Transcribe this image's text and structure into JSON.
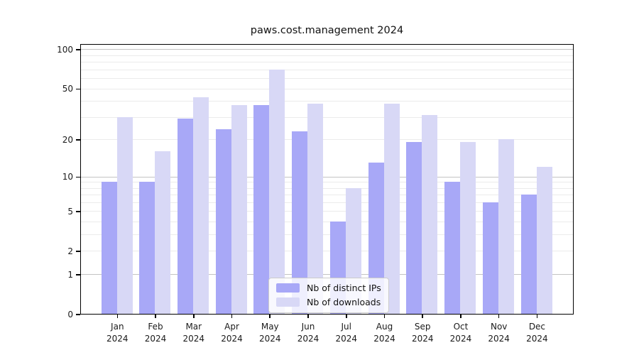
{
  "title": "paws.cost.management 2024",
  "chart_data": {
    "type": "bar",
    "title": "paws.cost.management 2024",
    "categories": [
      "Jan",
      "Feb",
      "Mar",
      "Apr",
      "May",
      "Jun",
      "Jul",
      "Aug",
      "Sep",
      "Oct",
      "Nov",
      "Dec"
    ],
    "year_label": "2024",
    "series": [
      {
        "name": "Nb of distinct IPs",
        "color": "#a8a8f7",
        "values": [
          9,
          9,
          29,
          24,
          37,
          23,
          4,
          13,
          19,
          9,
          6,
          7
        ]
      },
      {
        "name": "Nb of downloads",
        "color": "#d8d8f6",
        "values": [
          30,
          16,
          43,
          37,
          70,
          38,
          8,
          38,
          31,
          19,
          20,
          12
        ]
      }
    ],
    "yticks": [
      0,
      1,
      2,
      5,
      10,
      20,
      50,
      100
    ],
    "minor_gridlines": [
      2,
      3,
      4,
      5,
      6,
      7,
      8,
      9,
      20,
      30,
      40,
      50,
      60,
      70,
      80,
      90
    ],
    "major_gridlines": [
      1,
      10,
      100
    ],
    "scale": "log10(1+v)",
    "ylim": [
      0,
      110
    ],
    "grid": true,
    "legend_position": "lower center",
    "colors": {
      "bar_dark": "#a8a8f7",
      "bar_light": "#d8d8f6",
      "grid_major": "#c3c3c3",
      "grid_minor": "#ebebeb",
      "spine": "#000000"
    }
  }
}
